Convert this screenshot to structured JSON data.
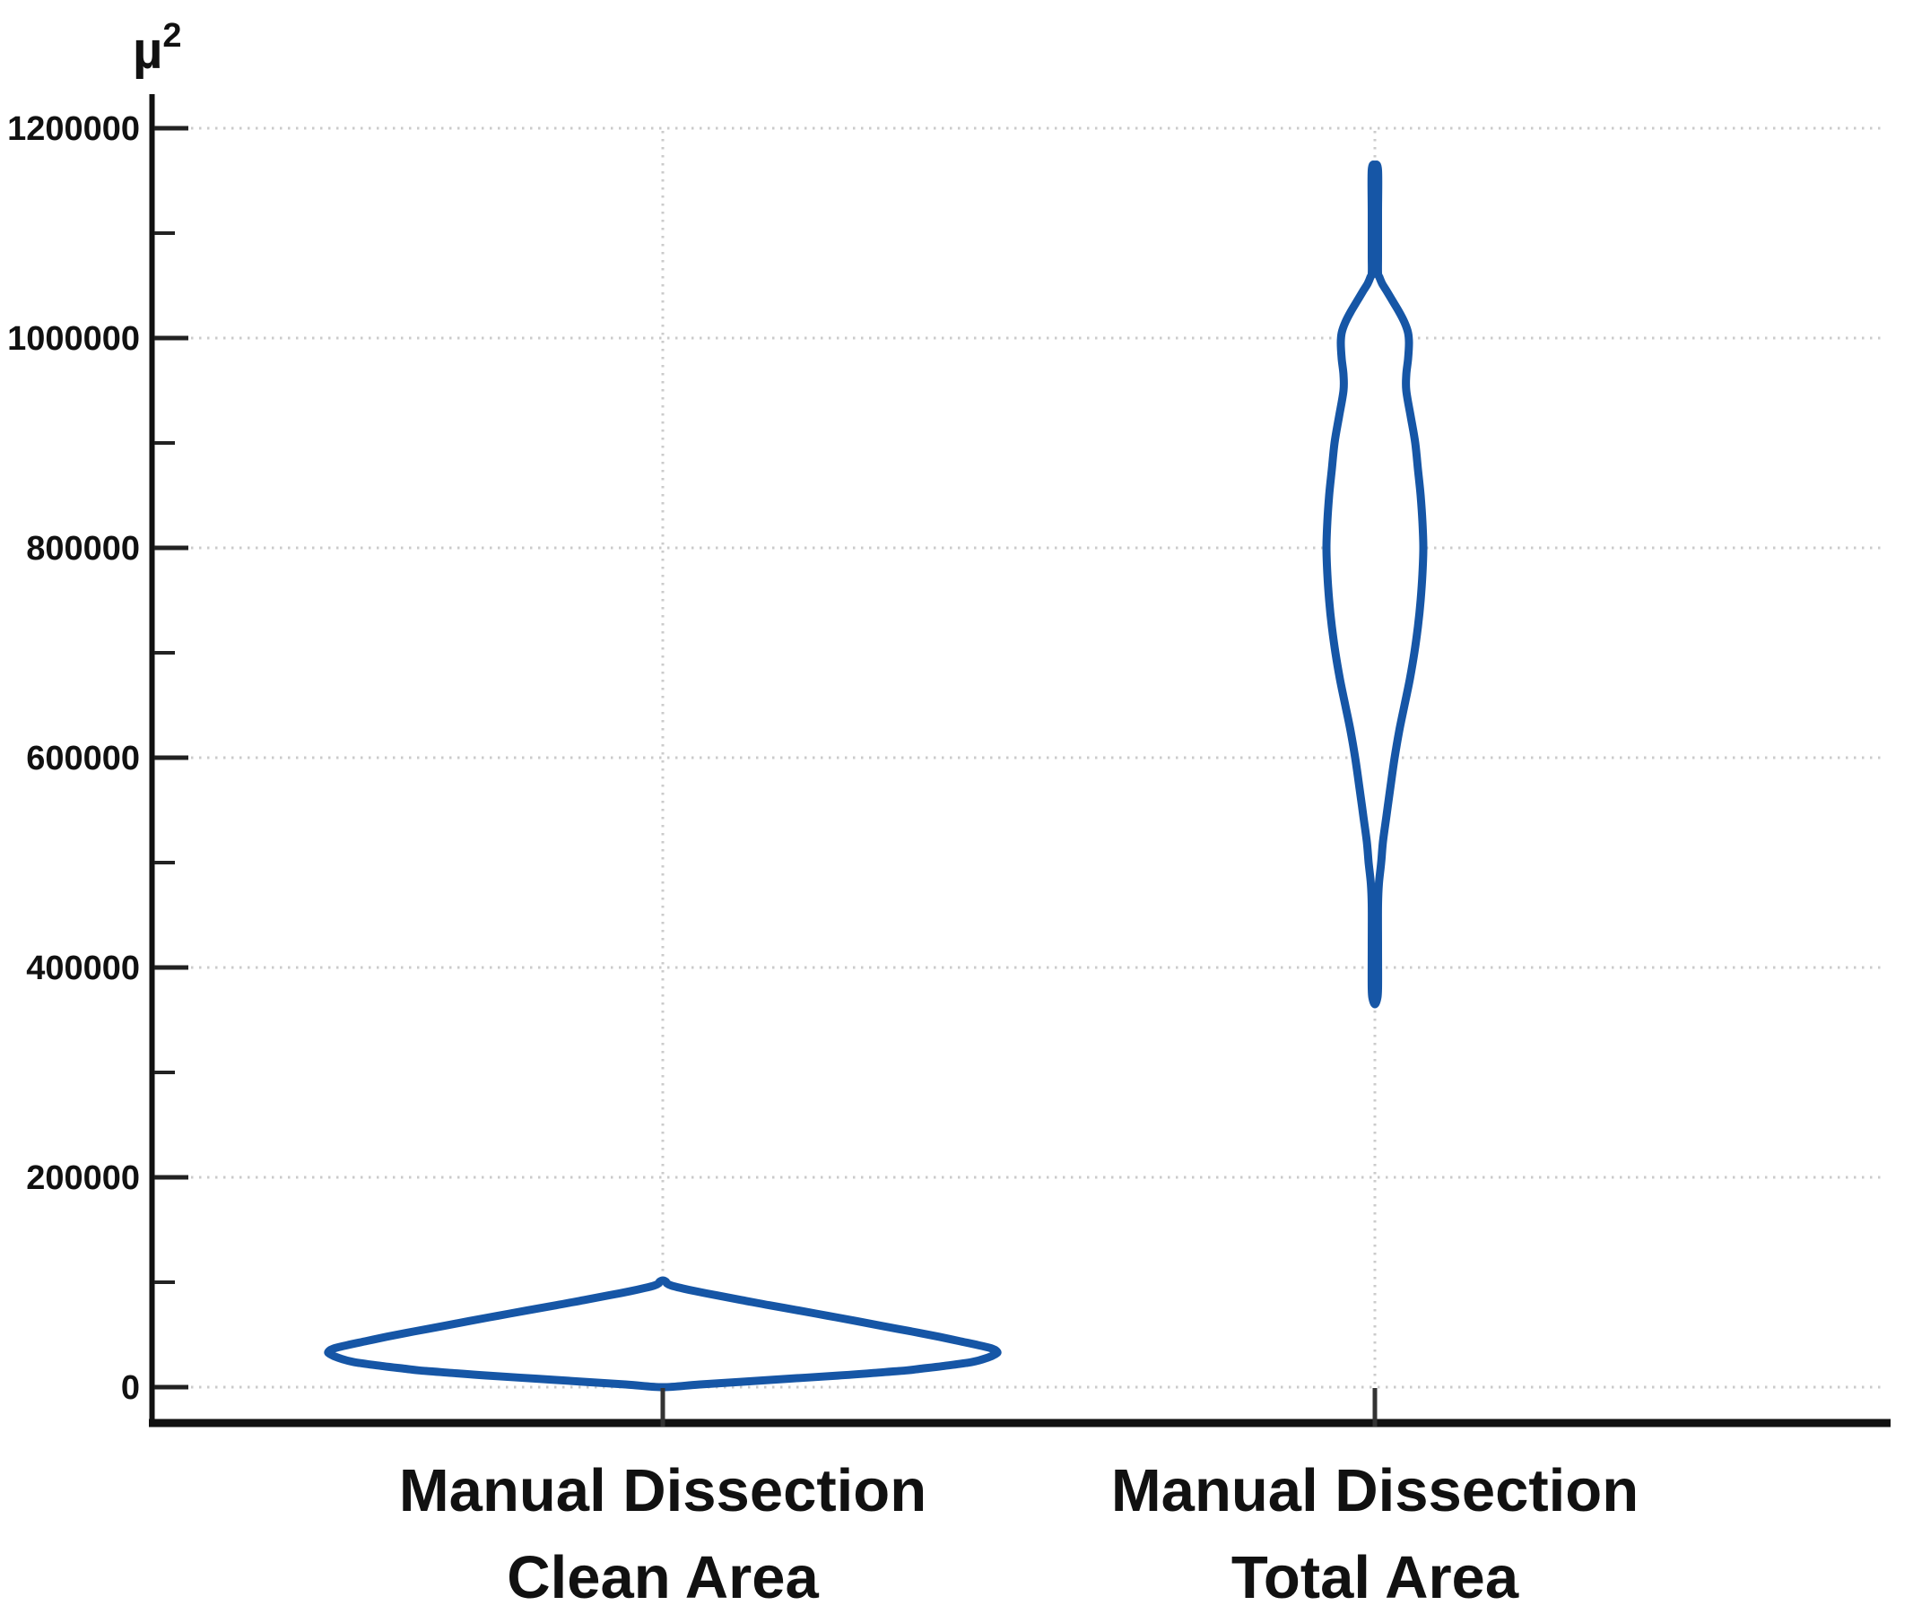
{
  "chart_data": {
    "type": "violin",
    "title": "",
    "y_axis": {
      "title_base": "µ",
      "title_exponent": "2",
      "major_ticks": [
        0,
        200000,
        400000,
        600000,
        800000,
        1000000,
        1200000
      ],
      "major_tick_labels": [
        "0",
        "200000",
        "400000",
        "600000",
        "800000",
        "1000000",
        "1200000"
      ],
      "minor_ticks": [
        100000,
        300000,
        500000,
        700000,
        900000,
        1100000
      ],
      "range": [
        0,
        1200000
      ],
      "grid": "dotted-horizontal-major"
    },
    "x_axis": {
      "categories": [
        {
          "label_line1": "Manual Dissection",
          "label_line2": "Clean Area"
        },
        {
          "label_line1": "Manual Dissection",
          "label_line2": "Total Area"
        }
      ]
    },
    "series": [
      {
        "name": "Manual Dissection Clean Area",
        "approx_min": 0,
        "approx_max": 101700,
        "mode": 33500,
        "profile_value_halfwidth": [
          [
            0,
            0
          ],
          [
            2500,
            40
          ],
          [
            5000,
            85
          ],
          [
            8000,
            140
          ],
          [
            11000,
            195
          ],
          [
            13500,
            235
          ],
          [
            16000,
            272
          ],
          [
            17500,
            287
          ],
          [
            20000,
            312
          ],
          [
            24000,
            345
          ],
          [
            28000,
            362
          ],
          [
            31500,
            371
          ],
          [
            33500,
            373
          ],
          [
            36500,
            368
          ],
          [
            40000,
            352
          ],
          [
            44000,
            330
          ],
          [
            48000,
            308
          ],
          [
            53000,
            278
          ],
          [
            58000,
            246
          ],
          [
            63000,
            216
          ],
          [
            68000,
            184
          ],
          [
            73000,
            152
          ],
          [
            78000,
            119
          ],
          [
            83000,
            88
          ],
          [
            87500,
            60
          ],
          [
            91500,
            36
          ],
          [
            94500,
            20
          ],
          [
            97000,
            9
          ],
          [
            99000,
            4.5
          ],
          [
            100500,
            3.5
          ],
          [
            101700,
            0
          ]
        ]
      },
      {
        "name": "Manual Dissection Total Area",
        "approx_min": 365000,
        "approx_max": 1165000,
        "mode": 800000,
        "profile_value_halfwidth": [
          [
            365000,
            0
          ],
          [
            370000,
            2.5
          ],
          [
            380000,
            3.5
          ],
          [
            420000,
            3.5
          ],
          [
            460000,
            3.5
          ],
          [
            480000,
            4.5
          ],
          [
            500000,
            7
          ],
          [
            520000,
            9
          ],
          [
            545000,
            13
          ],
          [
            570000,
            17
          ],
          [
            600000,
            22
          ],
          [
            625000,
            27
          ],
          [
            650000,
            33
          ],
          [
            675000,
            39
          ],
          [
            700000,
            44
          ],
          [
            725000,
            48
          ],
          [
            750000,
            51
          ],
          [
            775000,
            53
          ],
          [
            800000,
            54
          ],
          [
            825000,
            53
          ],
          [
            850000,
            51
          ],
          [
            875000,
            48
          ],
          [
            900000,
            45
          ],
          [
            925000,
            40
          ],
          [
            950000,
            35
          ],
          [
            965000,
            35
          ],
          [
            980000,
            37
          ],
          [
            995000,
            38
          ],
          [
            1005000,
            37
          ],
          [
            1015000,
            33
          ],
          [
            1025000,
            27
          ],
          [
            1035000,
            20
          ],
          [
            1045000,
            13
          ],
          [
            1052000,
            8
          ],
          [
            1058000,
            5
          ],
          [
            1062000,
            3.5
          ],
          [
            1080000,
            3.5
          ],
          [
            1120000,
            3.5
          ],
          [
            1160000,
            3.5
          ],
          [
            1165000,
            0
          ]
        ]
      }
    ],
    "colors": {
      "violin_stroke": "#1656a6",
      "violin_fill": "#ffffff",
      "axis": "#111111",
      "tick": "#222222",
      "grid": "#cbcbcb",
      "text": "#111111"
    }
  }
}
